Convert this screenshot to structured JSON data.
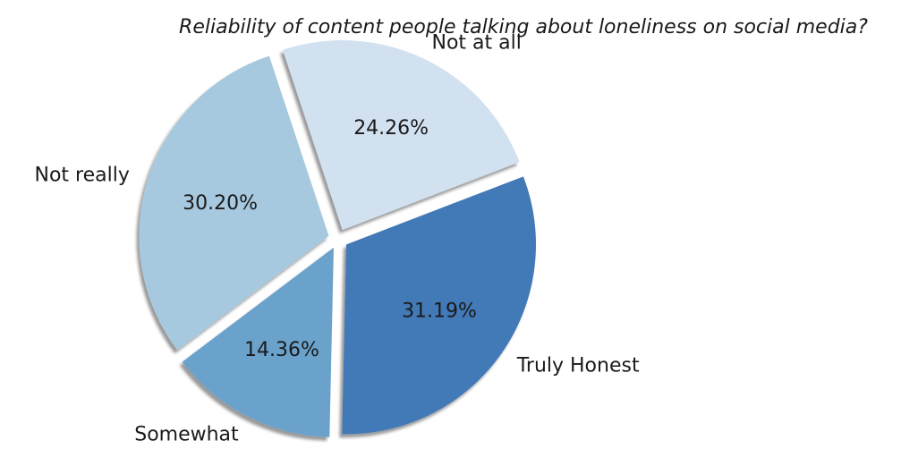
{
  "chart_data": {
    "type": "pie",
    "title": "Reliability of content people talking about loneliness on social media?",
    "slices": [
      {
        "label": "Truly Honest",
        "value": 31.19,
        "display": "31.19%",
        "color": "#4279b7"
      },
      {
        "label": "Somewhat",
        "value": 14.36,
        "display": "14.36%",
        "color": "#6ba2cc"
      },
      {
        "label": "Not really",
        "value": 30.2,
        "display": "30.20%",
        "color": "#a7c9df"
      },
      {
        "label": "Not at all",
        "value": 24.26,
        "display": "24.26%",
        "color": "#d1e1f0"
      }
    ],
    "start_angle_deg": -21,
    "direction": "clockwise",
    "exploded": true,
    "shadow": true,
    "legend": "none"
  }
}
